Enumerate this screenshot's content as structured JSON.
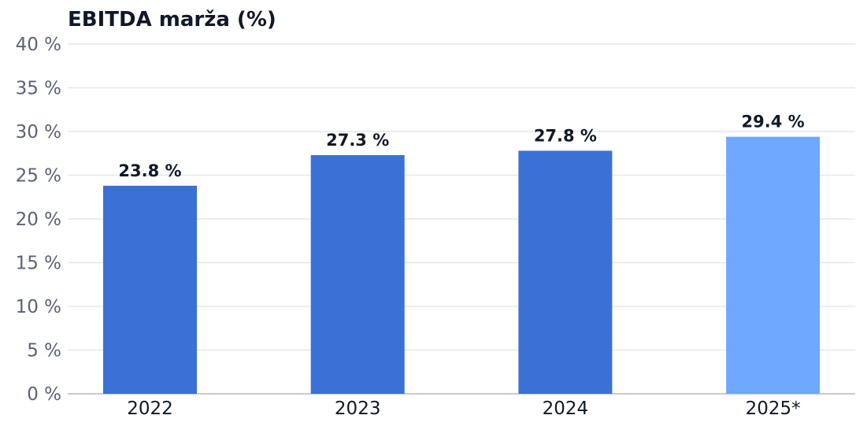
{
  "chart_data": {
    "type": "bar",
    "title": "EBITDA marža (%)",
    "categories": [
      "2022",
      "2023",
      "2024",
      "2025*"
    ],
    "values": [
      23.8,
      27.3,
      27.8,
      29.4
    ],
    "value_labels": [
      "23.8 %",
      "27.3 %",
      "27.8 %",
      "29.4 %"
    ],
    "ylim": [
      0,
      40
    ],
    "yticks": [
      0,
      5,
      10,
      15,
      20,
      25,
      30,
      35,
      40
    ],
    "ytick_labels": [
      "0 %",
      "5 %",
      "10 %",
      "15 %",
      "20 %",
      "25 %",
      "30 %",
      "35 %",
      "40 %"
    ],
    "xlabel": "",
    "ylabel": "",
    "grid": true,
    "legend": "none",
    "colors": {
      "actual": "#3b70d6",
      "forecast": "#6ea8ff"
    },
    "bar_color_keys": [
      "actual",
      "actual",
      "actual",
      "forecast"
    ]
  }
}
